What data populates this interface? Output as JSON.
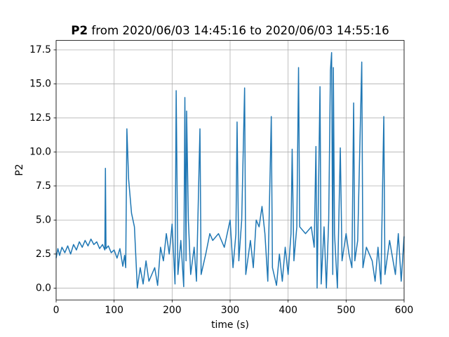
{
  "chart_data": {
    "type": "line",
    "title": {
      "name": "P2",
      "text": "from 2020/06/03 14:45:16 to 2020/06/03 14:55:16"
    },
    "xlabel": "time (s)",
    "ylabel": "P2",
    "color": "#1f77b4",
    "grid": true,
    "xlim": [
      0,
      600
    ],
    "xticks": [
      0,
      100,
      200,
      300,
      400,
      500,
      600
    ],
    "ylim": [
      -0.87,
      18.19
    ],
    "yticks": [
      {
        "value": 0,
        "label": "0.0"
      },
      2.5,
      {
        "value": 5,
        "label": "5.0"
      },
      7.5,
      {
        "value": 10,
        "label": "10.0"
      },
      12.5,
      {
        "value": 15,
        "label": "15.0"
      },
      17.5
    ],
    "x": [
      0,
      3,
      6,
      10,
      15,
      20,
      25,
      30,
      35,
      40,
      45,
      50,
      55,
      60,
      65,
      70,
      75,
      80,
      84,
      85,
      86,
      90,
      95,
      100,
      105,
      110,
      115,
      118,
      120,
      122,
      125,
      130,
      135,
      140,
      145,
      150,
      155,
      160,
      170,
      175,
      180,
      185,
      190,
      195,
      200,
      205,
      207,
      210,
      215,
      220,
      222,
      224,
      225,
      228,
      232,
      238,
      242,
      248,
      250,
      258,
      265,
      270,
      280,
      290,
      300,
      305,
      310,
      312,
      315,
      320,
      325,
      327,
      335,
      340,
      345,
      350,
      355,
      360,
      365,
      371,
      373,
      380,
      385,
      390,
      395,
      400,
      405,
      407,
      410,
      415,
      418,
      420,
      430,
      440,
      445,
      448,
      450,
      455,
      457,
      462,
      466,
      470,
      473,
      475,
      477,
      478,
      480,
      485,
      490,
      493,
      500,
      505,
      510,
      513,
      515,
      520,
      527,
      529,
      535,
      545,
      550,
      555,
      560,
      565,
      567,
      575,
      585,
      590,
      595,
      600
    ],
    "values": [
      2.2,
      2.9,
      2.4,
      3,
      2.6,
      3.1,
      2.5,
      3.2,
      2.8,
      3.4,
      3,
      3.5,
      3.1,
      3.6,
      3.2,
      3.4,
      2.9,
      3.2,
      2.8,
      8.8,
      2.9,
      3.1,
      2.6,
      2.8,
      2.2,
      2.9,
      1.6,
      2.4,
      1.5,
      11.7,
      8,
      5.5,
      4.5,
      0,
      1.5,
      0.3,
      2,
      0.5,
      1.5,
      0.2,
      3,
      2,
      4,
      2.5,
      4.7,
      0.3,
      14.5,
      1,
      3.5,
      0.1,
      14,
      2,
      13,
      5,
      1,
      3,
      0.5,
      11.7,
      1,
      2.5,
      4,
      3.5,
      4,
      3,
      5,
      1.5,
      4,
      12.2,
      2,
      5,
      14.7,
      1,
      3.5,
      1.5,
      5,
      4.5,
      6,
      4,
      0.5,
      12.6,
      1.5,
      0.2,
      2.5,
      0.5,
      3,
      1,
      4,
      10.2,
      2,
      4.5,
      16.2,
      4.5,
      4,
      4.5,
      3,
      10.4,
      0,
      14.8,
      0.3,
      4.5,
      0,
      5,
      16,
      17.3,
      1,
      16.2,
      4,
      0,
      10.3,
      2,
      4,
      2.5,
      1.5,
      13.6,
      2,
      3.5,
      16.6,
      1.5,
      3,
      2,
      0.5,
      3,
      0.3,
      12.6,
      1,
      3.5,
      1,
      4,
      0.5,
      3.8
    ]
  }
}
